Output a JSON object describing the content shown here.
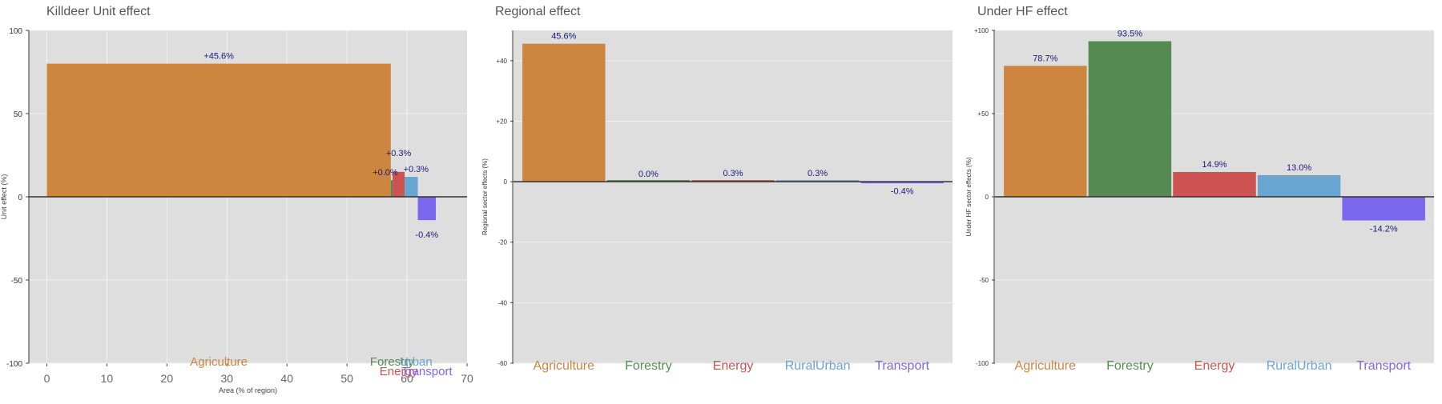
{
  "colors": {
    "Agriculture": "#cd853f",
    "Forestry": "#558b53",
    "Energy": "#cd5352",
    "RuralUrban": "#69a5d1",
    "Transport": "#7b67ee",
    "panel_bg": "#dedede",
    "grid": "#f2f2f2",
    "label_text": "#1a1a7a",
    "title_text": "#555555"
  },
  "chart_data": [
    {
      "type": "bar",
      "variable_width": true,
      "title": "Killdeer Unit effect",
      "xlabel": "Area (% of region)",
      "ylabel": "Unit effect (%)",
      "xlim": [
        -3,
        70
      ],
      "ylim": [
        -100,
        100
      ],
      "xticks": [
        "0",
        "10",
        "20",
        "30",
        "40",
        "50",
        "60",
        "70"
      ],
      "yticks": [
        "100",
        "50",
        "0",
        "-50",
        "-100"
      ],
      "grid": true,
      "series": [
        {
          "sector": "Agriculture",
          "x0": 0,
          "x1": 57.3,
          "value": 80,
          "label": "+45.6%"
        },
        {
          "sector": "Forestry",
          "x0": 57.3,
          "x1": 57.6,
          "value": 10,
          "label": "+0.0%"
        },
        {
          "sector": "Energy",
          "x0": 57.6,
          "x1": 59.6,
          "value": 15,
          "label": "+0.3%"
        },
        {
          "sector": "RuralUrban",
          "x0": 59.6,
          "x1": 61.8,
          "value": 12,
          "label": "+0.3%"
        },
        {
          "sector": "Transport",
          "x0": 61.8,
          "x1": 64.8,
          "value": -14,
          "label": "-0.4%"
        }
      ],
      "category_labels": [
        "Agriculture",
        "Forestry",
        "Urban",
        "Energy",
        "Transport"
      ]
    },
    {
      "type": "bar",
      "title": "Regional effect",
      "xlabel": "",
      "ylabel": "Regional sector effects (%)",
      "ylim": [
        -60,
        50
      ],
      "yticks": [
        "+40",
        "+20",
        "0",
        "-20",
        "-40",
        "-60"
      ],
      "grid": true,
      "categories": [
        "Agriculture",
        "Forestry",
        "Energy",
        "RuralUrban",
        "Transport"
      ],
      "values": [
        45.6,
        0.0,
        0.3,
        0.3,
        -0.4
      ],
      "labels": [
        "45.6%",
        "0.0%",
        "0.3%",
        "0.3%",
        "-0.4%"
      ]
    },
    {
      "type": "bar",
      "title": "Under HF effect",
      "xlabel": "",
      "ylabel": "Under HF sector effects (%)",
      "ylim": [
        -100,
        100
      ],
      "yticks": [
        "+100",
        "+50",
        "0",
        "-50",
        "-100"
      ],
      "grid": true,
      "categories": [
        "Agriculture",
        "Forestry",
        "Energy",
        "RuralUrban",
        "Transport"
      ],
      "values": [
        78.7,
        93.5,
        14.9,
        13.0,
        -14.2
      ],
      "labels": [
        "78.7%",
        "93.5%",
        "14.9%",
        "13.0%",
        "-14.2%"
      ]
    }
  ]
}
